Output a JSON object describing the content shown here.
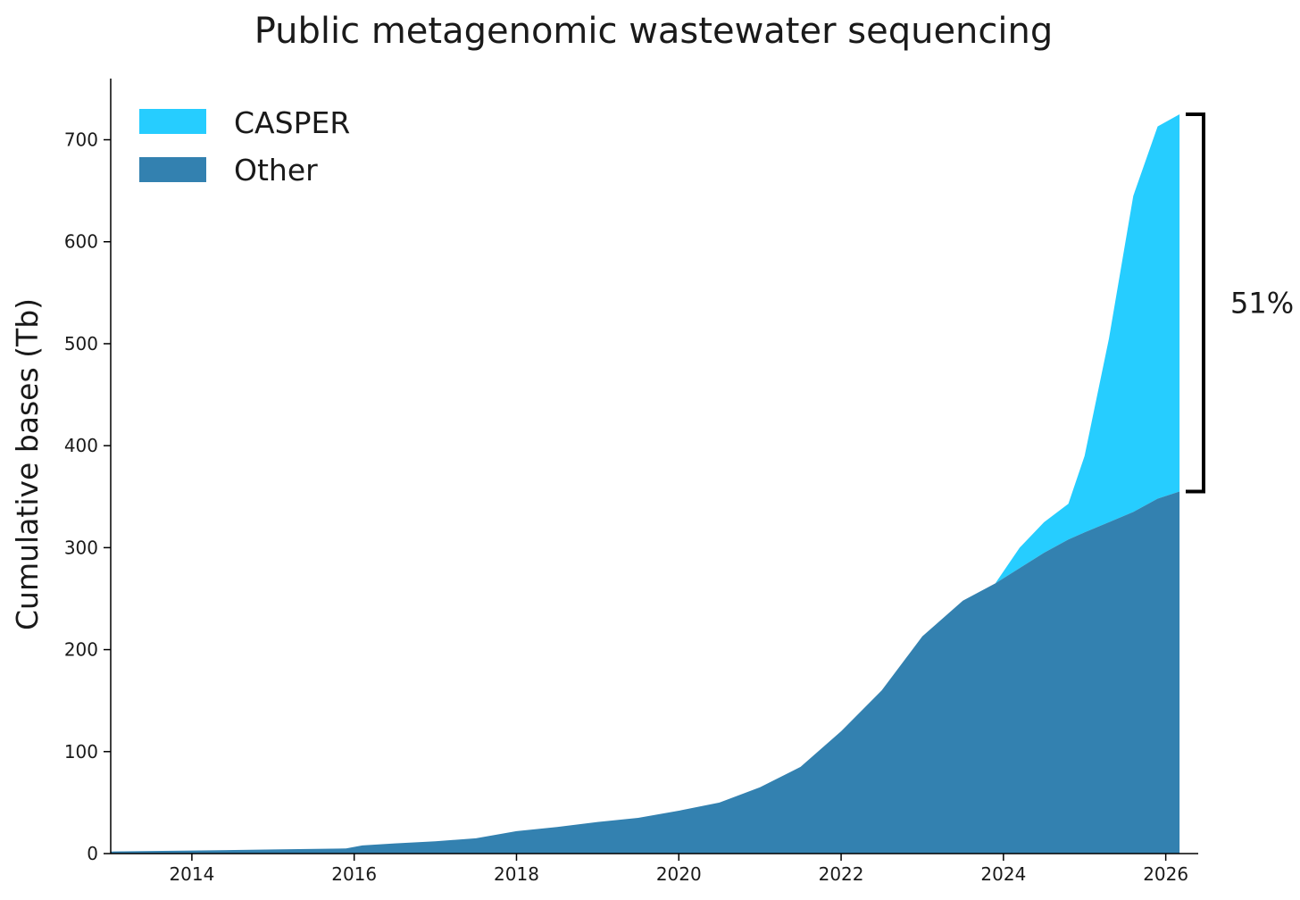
{
  "chart_data": {
    "type": "area",
    "stacked": true,
    "title": "Public metagenomic wastewater sequencing",
    "xlabel": "",
    "ylabel": "Cumulative bases (Tb)",
    "xlim": [
      2013.0,
      2026.4
    ],
    "ylim": [
      0,
      760
    ],
    "x_ticks": [
      2014,
      2016,
      2018,
      2020,
      2022,
      2024,
      2026
    ],
    "x_tick_labels": [
      "2014",
      "2016",
      "2018",
      "2020",
      "2022",
      "2024",
      "2026"
    ],
    "y_ticks": [
      0,
      100,
      200,
      300,
      400,
      500,
      600,
      700
    ],
    "y_tick_labels": [
      "0",
      "100",
      "200",
      "300",
      "400",
      "500",
      "600",
      "700"
    ],
    "grid": false,
    "legend": {
      "placement": "top-left",
      "entries": [
        "CASPER",
        "Other"
      ]
    },
    "colors": {
      "CASPER": "#26cdff",
      "Other": "#3381b0"
    },
    "x": [
      2013.0,
      2014.0,
      2015.0,
      2015.9,
      2016.1,
      2016.5,
      2017.0,
      2017.5,
      2018.0,
      2018.5,
      2019.0,
      2019.5,
      2020.0,
      2020.5,
      2021.0,
      2021.5,
      2022.0,
      2022.5,
      2023.0,
      2023.5,
      2023.9,
      2024.2,
      2024.5,
      2024.8,
      2025.0,
      2025.3,
      2025.6,
      2025.9,
      2026.17
    ],
    "series": [
      {
        "name": "Other",
        "values": [
          2,
          3,
          4,
          5,
          8,
          10,
          12,
          15,
          22,
          26,
          31,
          35,
          42,
          50,
          65,
          85,
          120,
          160,
          213,
          248,
          265,
          280,
          295,
          308,
          315,
          325,
          335,
          348,
          355
        ]
      },
      {
        "name": "CASPER",
        "values": [
          0,
          0,
          0,
          0,
          0,
          0,
          0,
          0,
          0,
          0,
          0,
          0,
          0,
          0,
          0,
          0,
          0,
          0,
          0,
          0,
          0,
          20,
          30,
          35,
          75,
          180,
          310,
          365,
          370
        ]
      }
    ],
    "annotations": [
      {
        "label": "51%",
        "type": "bracket",
        "y_range": [
          355,
          725
        ]
      }
    ]
  }
}
